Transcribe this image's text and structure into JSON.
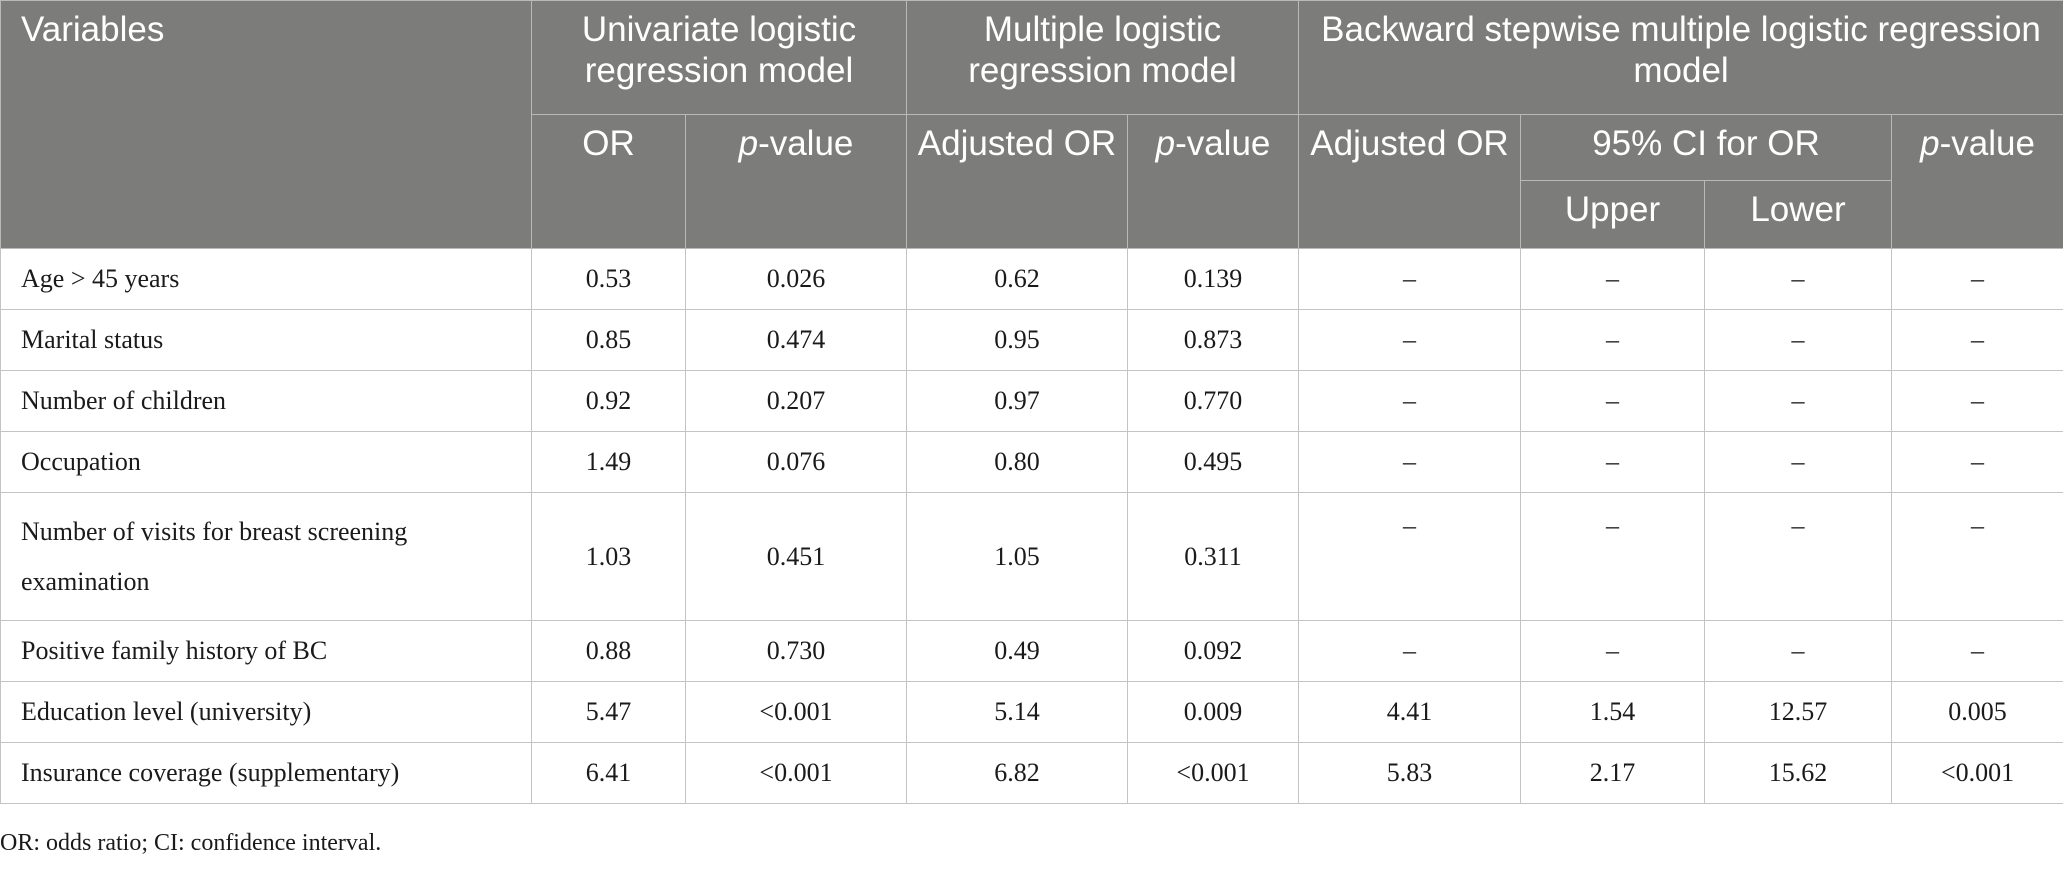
{
  "header": {
    "variables": "Variables",
    "univariate": "Univariate logistic regression model",
    "multiple": "Multiple logistic regression model",
    "backward": "Backward stepwise multiple logistic regression model",
    "or": "OR",
    "p_italic": "p",
    "p_suffix": "-value",
    "adjusted_or": "Adjusted OR",
    "ci": "95% CI for OR",
    "upper": "Upper",
    "lower": "Lower"
  },
  "rows": [
    {
      "var": "Age > 45 years",
      "or": "0.53",
      "p1": "0.026",
      "aor1": "0.62",
      "p2": "0.139",
      "aor2": "–",
      "upper": "–",
      "lower": "–",
      "p3": "–"
    },
    {
      "var": "Marital status",
      "or": "0.85",
      "p1": "0.474",
      "aor1": "0.95",
      "p2": "0.873",
      "aor2": "–",
      "upper": "–",
      "lower": "–",
      "p3": "–"
    },
    {
      "var": "Number of children",
      "or": "0.92",
      "p1": "0.207",
      "aor1": "0.97",
      "p2": "0.770",
      "aor2": "–",
      "upper": "–",
      "lower": "–",
      "p3": "–"
    },
    {
      "var": "Occupation",
      "or": "1.49",
      "p1": "0.076",
      "aor1": "0.80",
      "p2": "0.495",
      "aor2": "–",
      "upper": "–",
      "lower": "–",
      "p3": "–"
    },
    {
      "var_line1": "Number of visits for breast screening",
      "var_line2": "examination",
      "or": "1.03",
      "p1": "0.451",
      "aor1": "1.05",
      "p2": "0.311",
      "aor2": "–",
      "upper": "–",
      "lower": "–",
      "p3": "–"
    },
    {
      "var": "Positive family history of BC",
      "or": "0.88",
      "p1": "0.730",
      "aor1": "0.49",
      "p2": "0.092",
      "aor2": "–",
      "upper": "–",
      "lower": "–",
      "p3": "–"
    },
    {
      "var": "Education level (university)",
      "or": "5.47",
      "p1": "<0.001",
      "aor1": "5.14",
      "p2": "0.009",
      "aor2": "4.41",
      "upper": "1.54",
      "lower": "12.57",
      "p3": "0.005"
    },
    {
      "var": "Insurance coverage (supplementary)",
      "or": "6.41",
      "p1": "<0.001",
      "aor1": "6.82",
      "p2": "<0.001",
      "aor2": "5.83",
      "upper": "2.17",
      "lower": "15.62",
      "p3": "<0.001"
    }
  ],
  "footnote": "OR: odds ratio; CI: confidence interval."
}
